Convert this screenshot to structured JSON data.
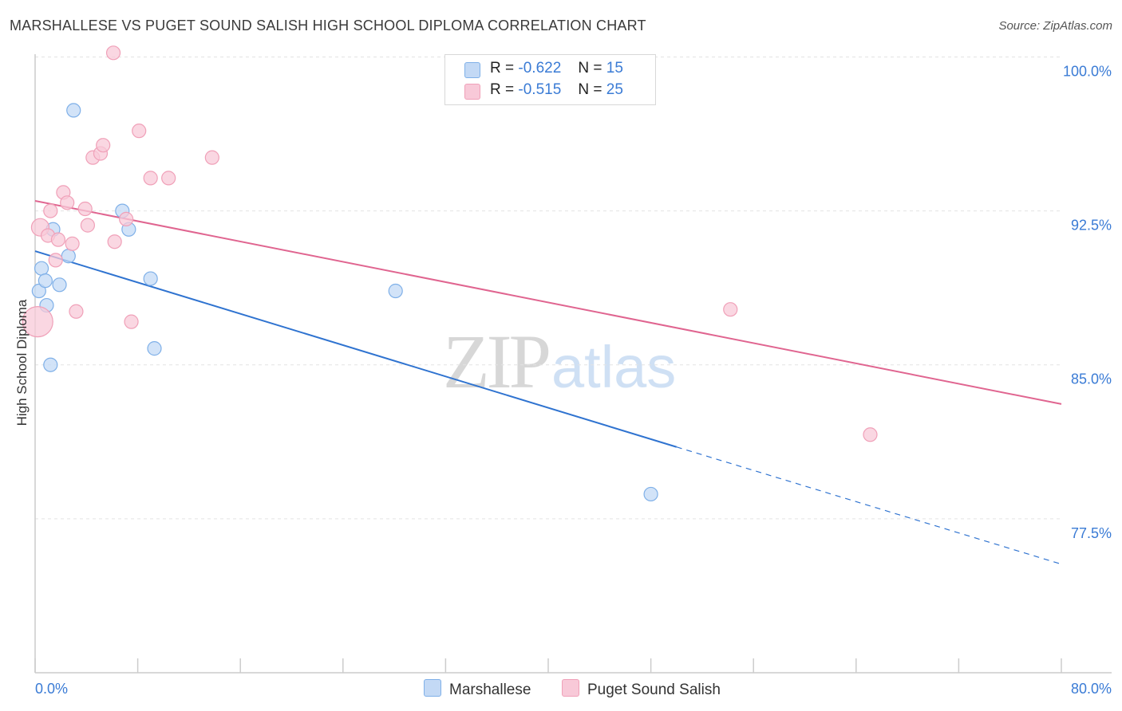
{
  "header": {
    "title": "MARSHALLESE VS PUGET SOUND SALISH HIGH SCHOOL DIPLOMA CORRELATION CHART",
    "source": "Source: ZipAtlas.com"
  },
  "watermark": {
    "zip": "ZIP",
    "atlas": "atlas"
  },
  "legend": {
    "rows": [
      {
        "r_label": "R =",
        "r_value": "-0.622",
        "n_label": "N =",
        "n_value": "15"
      },
      {
        "r_label": "R =",
        "r_value": "-0.515",
        "n_label": "N =",
        "n_value": "25"
      }
    ]
  },
  "chart_data": {
    "type": "scatter",
    "title": "MARSHALLESE VS PUGET SOUND SALISH HIGH SCHOOL DIPLOMA CORRELATION CHART",
    "xlabel": "",
    "ylabel": "High School Diploma",
    "xlim": [
      0,
      80
    ],
    "ylim": [
      70.0,
      100.6
    ],
    "x_tick_labels": [
      "0.0%",
      "80.0%"
    ],
    "y_ticks": [
      77.5,
      85.0,
      92.5,
      100.0
    ],
    "y_tick_labels": [
      "77.5%",
      "85.0%",
      "92.5%",
      "100.0%"
    ],
    "grid": true,
    "legend_position": "top-center",
    "series": [
      {
        "name": "Marshallese",
        "color": "#7fb0e8",
        "fill": "#c3d9f5",
        "line_color": "#2f73d0",
        "R": -0.622,
        "N": 15,
        "points": [
          [
            0.3,
            88.6
          ],
          [
            0.5,
            89.7
          ],
          [
            0.8,
            89.1
          ],
          [
            0.9,
            87.9
          ],
          [
            1.2,
            85.0
          ],
          [
            1.4,
            91.6
          ],
          [
            1.9,
            88.9
          ],
          [
            2.6,
            90.3
          ],
          [
            3.0,
            97.4
          ],
          [
            6.8,
            92.5
          ],
          [
            7.3,
            91.6
          ],
          [
            9.0,
            89.2
          ],
          [
            9.3,
            85.8
          ],
          [
            28.1,
            88.6
          ],
          [
            48.0,
            78.7
          ]
        ],
        "trend": {
          "x0": 0,
          "y0": 90.54,
          "x1": 50,
          "y1": 81.0,
          "dash_to_x": 80,
          "dash_to_y": 75.29
        }
      },
      {
        "name": "Puget Sound Salish",
        "color": "#f0a0b8",
        "fill": "#f8c9d8",
        "line_color": "#e06590",
        "R": -0.515,
        "N": 25,
        "points": [
          [
            0.2,
            87.1
          ],
          [
            0.4,
            91.7
          ],
          [
            1.0,
            91.3
          ],
          [
            1.2,
            92.5
          ],
          [
            1.6,
            90.1
          ],
          [
            1.8,
            91.1
          ],
          [
            2.2,
            93.4
          ],
          [
            2.5,
            92.9
          ],
          [
            2.9,
            90.9
          ],
          [
            3.2,
            87.6
          ],
          [
            3.9,
            92.6
          ],
          [
            4.1,
            91.8
          ],
          [
            4.5,
            95.1
          ],
          [
            5.1,
            95.3
          ],
          [
            5.3,
            95.7
          ],
          [
            6.1,
            100.2
          ],
          [
            6.2,
            91.0
          ],
          [
            7.1,
            92.1
          ],
          [
            7.5,
            87.1
          ],
          [
            8.1,
            96.4
          ],
          [
            9.0,
            94.1
          ],
          [
            10.4,
            94.1
          ],
          [
            13.8,
            95.1
          ],
          [
            54.2,
            87.7
          ],
          [
            65.1,
            81.6
          ]
        ],
        "trend": {
          "x0": 0,
          "y0": 92.99,
          "x1": 80,
          "y1": 83.09
        }
      }
    ]
  },
  "bottom_legend": {
    "items": [
      {
        "label": "Marshallese"
      },
      {
        "label": "Puget Sound Salish"
      }
    ]
  },
  "colors": {
    "axis_label_blue": "#3a7bd5",
    "grid": "#e3e3e3",
    "axis": "#cccccc"
  }
}
